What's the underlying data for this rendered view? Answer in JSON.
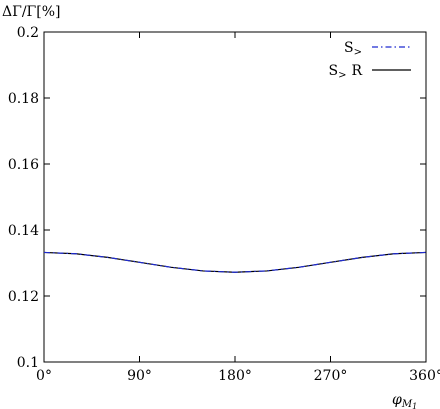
{
  "chart_data": {
    "type": "line",
    "ylabel": "ΔΓ/Γ[%]",
    "xlabel": "φ",
    "xlabel_sub": "M",
    "xlabel_subsub": "1",
    "xlim": [
      0,
      360
    ],
    "ylim": [
      0.1,
      0.2
    ],
    "x_ticks": [
      0,
      90,
      180,
      270,
      360
    ],
    "x_tick_labels": [
      "0°",
      "90°",
      "180°",
      "270°",
      "360°"
    ],
    "y_ticks": [
      0.1,
      0.12,
      0.14,
      0.16,
      0.18,
      0.2
    ],
    "y_tick_labels": [
      "0.1",
      "0.12",
      "0.14",
      "0.16",
      "0.18",
      "0.2"
    ],
    "grid": false,
    "legend_position": "top-right",
    "x": [
      0,
      30,
      60,
      90,
      120,
      150,
      180,
      210,
      240,
      270,
      300,
      330,
      360
    ],
    "series": [
      {
        "name": "S",
        "name_sub": ">",
        "color": "#1f2bd0",
        "style": "dash-dot",
        "values": [
          0.1332,
          0.1328,
          0.1317,
          0.1302,
          0.1287,
          0.1276,
          0.1272,
          0.1276,
          0.1287,
          0.1302,
          0.1317,
          0.1328,
          0.1332
        ]
      },
      {
        "name": "S",
        "name_sub": ">",
        "name_suffix": "R",
        "color": "#000000",
        "style": "solid",
        "values": [
          0.1332,
          0.1328,
          0.1317,
          0.1302,
          0.1287,
          0.1276,
          0.1272,
          0.1276,
          0.1287,
          0.1302,
          0.1317,
          0.1328,
          0.1332
        ]
      }
    ]
  }
}
